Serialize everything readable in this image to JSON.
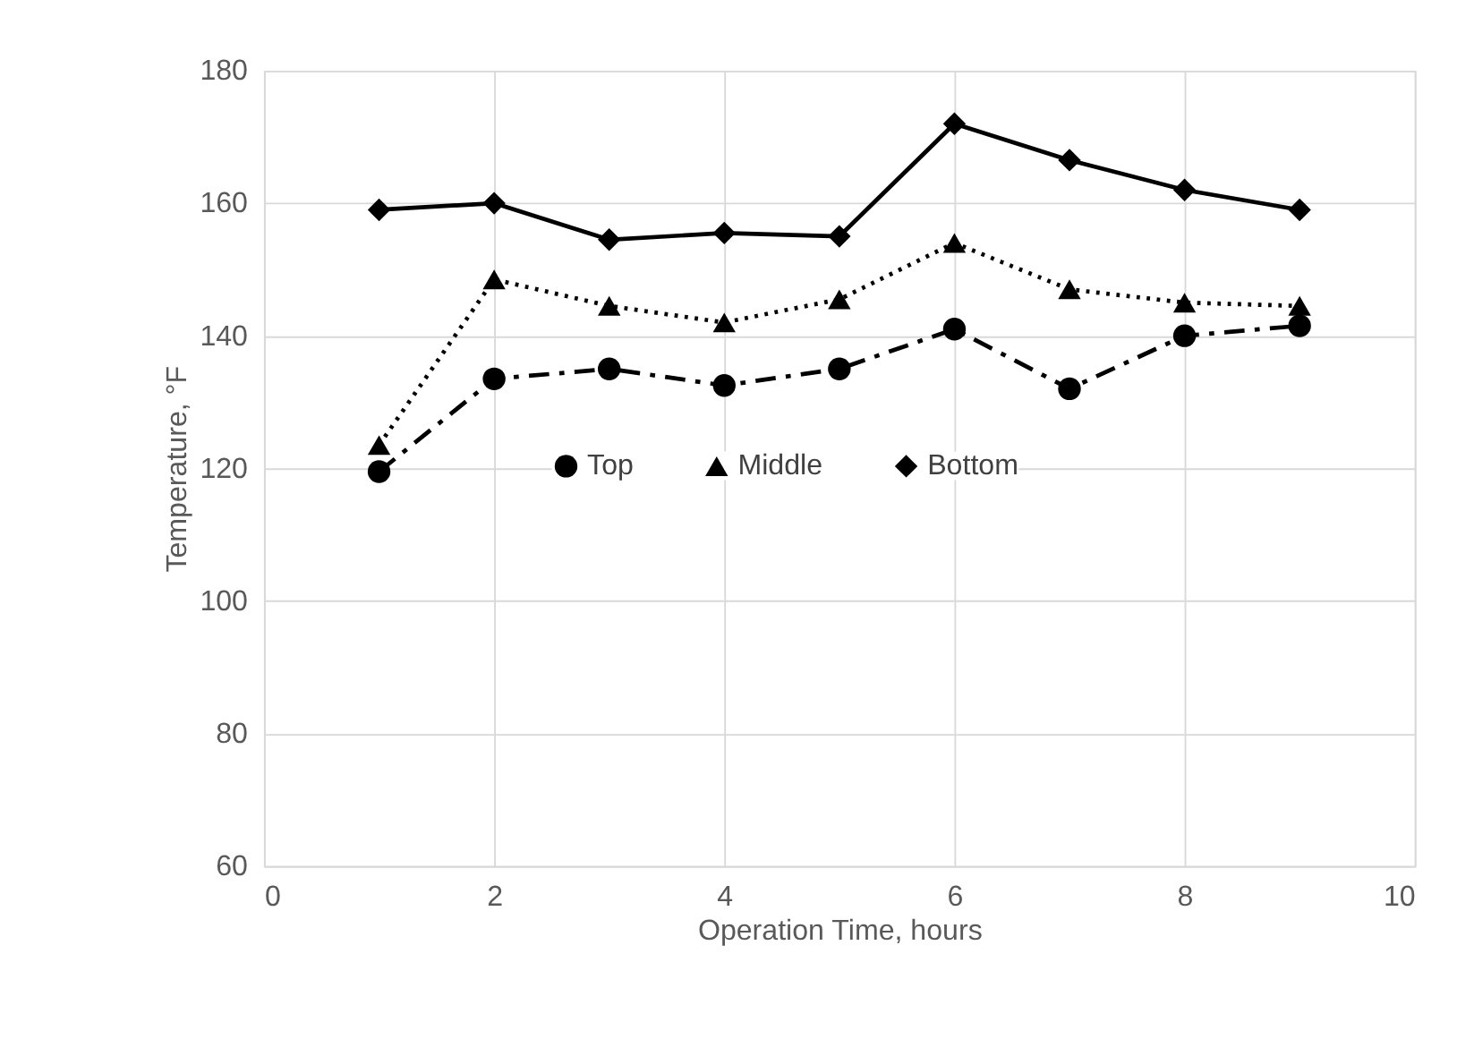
{
  "chart_data": {
    "type": "line",
    "xlabel": "Operation Time, hours",
    "ylabel": "Temperature, °F",
    "x": [
      1,
      2,
      3,
      4,
      5,
      6,
      7,
      8,
      9
    ],
    "series": [
      {
        "name": "Top",
        "color": "#000000",
        "marker": "circle",
        "line_style": "dashdot",
        "values": [
          119.5,
          133.5,
          135,
          132.5,
          135,
          141,
          132,
          140,
          141.5
        ]
      },
      {
        "name": "Middle",
        "color": "#000000",
        "marker": "triangle",
        "line_style": "dotted",
        "values": [
          123.5,
          148.5,
          144.5,
          142,
          145.5,
          154,
          147,
          145,
          144.5
        ]
      },
      {
        "name": "Bottom",
        "color": "#000000",
        "marker": "diamond",
        "line_style": "solid",
        "values": [
          159,
          160,
          154.5,
          155.5,
          155,
          172,
          166.5,
          162,
          159
        ]
      }
    ],
    "xlim": [
      0,
      10
    ],
    "xticks": [
      0,
      2,
      4,
      6,
      8,
      10
    ],
    "ylim": [
      60,
      180
    ],
    "yticks": [
      60,
      80,
      100,
      120,
      140,
      160,
      180
    ],
    "grid": true,
    "legend": "center"
  }
}
